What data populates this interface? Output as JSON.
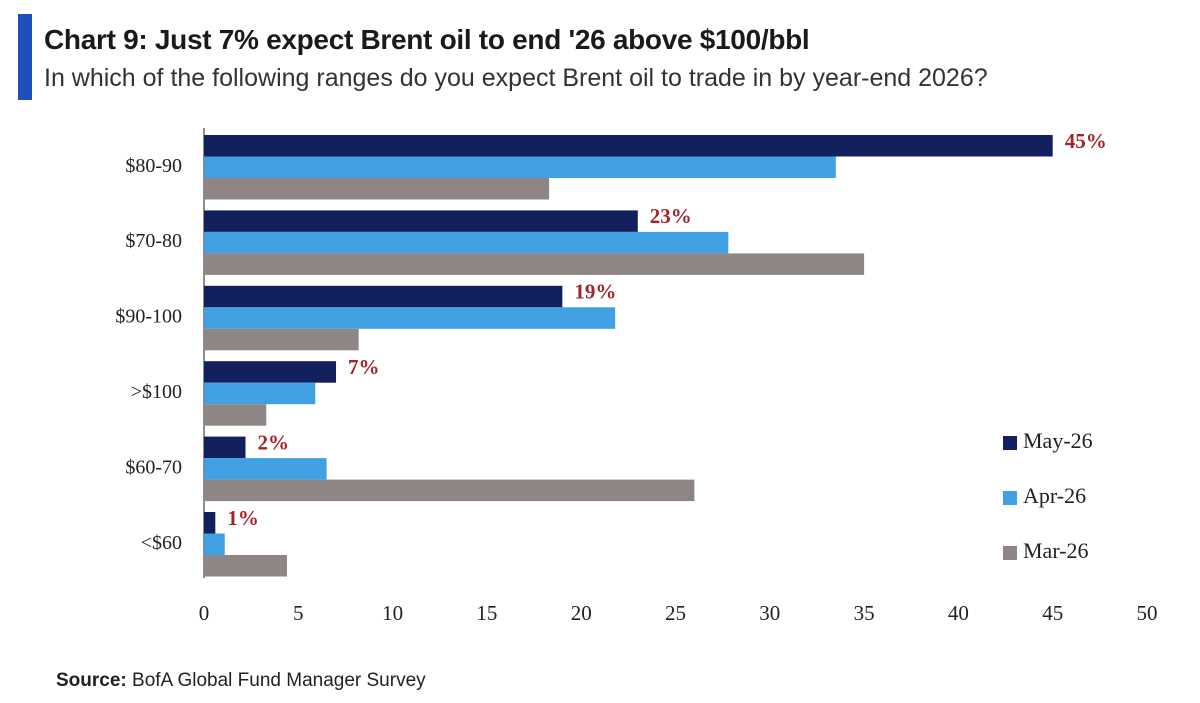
{
  "header": {
    "title": "Chart 9: Just 7% expect Brent oil to end '26 above $100/bbl",
    "subtitle": "In which of the following ranges do you expect Brent oil to trade in by year-end 2026?"
  },
  "footer": {
    "source_label": "Source:",
    "source_text": "BofA Global Fund Manager Survey"
  },
  "colors": {
    "accent": "#1f4fbf",
    "May-26": "#13205e",
    "Apr-26": "#41a0e1",
    "Mar-26": "#8e8585",
    "data_label": "#a3242b"
  },
  "chart_data": {
    "type": "bar",
    "orientation": "horizontal",
    "title": "Chart 9: Just 7% expect Brent oil to end '26 above $100/bbl",
    "subtitle": "In which of the following ranges do you expect Brent oil to trade in by year-end 2026?",
    "categories": [
      "$80-90",
      "$70-80",
      "$90-100",
      ">$100",
      "$60-70",
      "<$60"
    ],
    "series": [
      {
        "name": "May-26",
        "values": [
          45,
          23,
          19,
          7,
          2.2,
          0.6
        ],
        "data_labels": [
          "45%",
          "23%",
          "19%",
          "7%",
          "2%",
          "1%"
        ]
      },
      {
        "name": "Apr-26",
        "values": [
          33.5,
          27.8,
          21.8,
          5.9,
          6.5,
          1.1
        ]
      },
      {
        "name": "Mar-26",
        "values": [
          18.3,
          35,
          8.2,
          3.3,
          26,
          4.4
        ]
      }
    ],
    "xlim": [
      0,
      50
    ],
    "xticks": [
      0,
      5,
      10,
      15,
      20,
      25,
      30,
      35,
      40,
      45,
      50
    ],
    "xlabel": "",
    "ylabel": "",
    "grid": false,
    "legend_position": "right"
  }
}
